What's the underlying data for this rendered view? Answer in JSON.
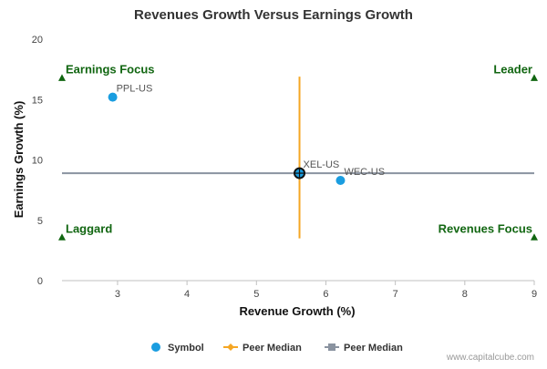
{
  "chart_data": {
    "type": "scatter",
    "title": "Revenues Growth Versus Earnings Growth",
    "xlabel": "Revenue Growth (%)",
    "ylabel": "Earnings Growth (%)",
    "xlim": [
      2.2,
      9.0
    ],
    "ylim": [
      0,
      20
    ],
    "xticks": [
      3,
      4,
      5,
      6,
      7,
      8,
      9
    ],
    "yticks": [
      0,
      5,
      10,
      15,
      20
    ],
    "grid": false,
    "points": [
      {
        "label": "PPL-US",
        "x": 2.93,
        "y": 15.2
      },
      {
        "label": "XEL-US",
        "x": 5.62,
        "y": 8.9
      },
      {
        "label": "WEC-US",
        "x": 6.21,
        "y": 8.3
      }
    ],
    "highlight_point": "XEL-US",
    "peer_median": {
      "x": 5.62,
      "y": 8.9
    },
    "vertical_median_range": [
      3.5,
      16.9
    ],
    "quadrant_labels": [
      {
        "text": "Earnings Focus",
        "corner": "top-left",
        "x": 2.2,
        "y": 16.8
      },
      {
        "text": "Leader",
        "corner": "top-right",
        "x": 9.0,
        "y": 16.8
      },
      {
        "text": "Laggard",
        "corner": "bottom-left",
        "x": 2.2,
        "y": 3.6
      },
      {
        "text": "Revenues Focus",
        "corner": "bottom-right",
        "x": 9.0,
        "y": 3.6
      }
    ],
    "legend": {
      "placement": "bottom",
      "items": [
        {
          "label": "Symbol",
          "kind": "circle",
          "color": "#1a9de0"
        },
        {
          "label": "Peer Median",
          "kind": "diamond-line",
          "color": "#f5a623"
        },
        {
          "label": "Peer Median",
          "kind": "square-line",
          "color": "#8a93a0"
        }
      ]
    },
    "colors": {
      "point": "#1a9de0",
      "vertical_median": "#f5a623",
      "horizontal_median": "#8a93a0",
      "quadrant_text": "#116611",
      "quadrant_marker": "#116611"
    },
    "credit": "www.capitalcube.com"
  }
}
